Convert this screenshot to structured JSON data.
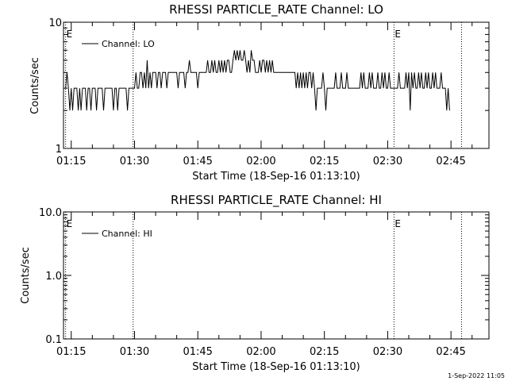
{
  "footer": {
    "timestamp": "1-Sep-2022 11:05"
  },
  "chart_data": [
    {
      "type": "line",
      "title": "RHESSI PARTICLE_RATE Channel: LO",
      "xlabel": "Start Time (18-Sep-16 01:13:10)",
      "ylabel": "Counts/sec",
      "yscale": "log",
      "ylim": [
        1,
        10
      ],
      "ytick_labels": [
        "1",
        "10"
      ],
      "xlim": [
        "01:13:10",
        "02:54:00"
      ],
      "xtick_labels": [
        "01:15",
        "01:30",
        "01:45",
        "02:00",
        "02:15",
        "02:30",
        "02:45"
      ],
      "legend": {
        "position": "top-left",
        "entries": [
          "Channel: LO"
        ]
      },
      "markers": [
        {
          "time": "01:13:40",
          "label": "E"
        },
        {
          "time": "01:29:40",
          "label": ""
        },
        {
          "time": "02:31:30",
          "label": "E"
        },
        {
          "time": "02:47:30",
          "label": ""
        }
      ],
      "series": [
        {
          "name": "Channel: LO",
          "x_start": "01:13:40",
          "x_step_seconds": 20,
          "values": [
            3,
            4,
            3,
            2,
            3,
            2,
            3,
            3,
            3,
            2,
            3,
            2,
            3,
            3,
            3,
            2,
            3,
            3,
            2,
            3,
            3,
            3,
            2,
            3,
            3,
            3,
            3,
            2,
            3,
            3,
            3,
            3,
            3,
            3,
            2,
            3,
            3,
            2,
            3,
            3,
            3,
            3,
            3,
            3,
            2,
            3,
            3,
            3,
            3,
            3,
            4,
            3,
            3,
            4,
            4,
            3,
            4,
            3,
            5,
            3,
            4,
            3,
            4,
            4,
            4,
            3,
            4,
            4,
            3,
            4,
            4,
            4,
            3,
            4,
            4,
            4,
            4,
            4,
            4,
            4,
            3,
            4,
            4,
            4,
            4,
            3,
            4,
            4,
            5,
            4,
            4,
            4,
            4,
            4,
            3,
            4,
            4,
            4,
            4,
            4,
            4,
            5,
            4,
            4,
            5,
            4,
            5,
            4,
            4,
            5,
            4,
            5,
            4,
            5,
            4,
            5,
            5,
            4,
            4,
            5,
            6,
            5,
            6,
            5,
            6,
            5,
            5,
            6,
            5,
            4,
            5,
            4,
            6,
            5,
            5,
            4,
            4,
            4,
            5,
            4,
            5,
            5,
            4,
            5,
            4,
            5,
            4,
            5,
            4,
            4,
            4,
            4,
            4,
            4,
            4,
            4,
            4,
            4,
            4,
            4,
            4,
            4,
            4,
            4,
            3,
            4,
            3,
            4,
            3,
            4,
            3,
            4,
            3,
            4,
            4,
            3,
            4,
            3,
            2,
            3,
            3,
            3,
            3,
            4,
            3,
            2,
            3,
            3,
            3,
            3,
            3,
            3,
            4,
            3,
            3,
            3,
            4,
            3,
            3,
            3,
            4,
            3,
            3,
            3,
            3,
            3,
            3,
            3,
            3,
            3,
            4,
            3,
            4,
            3,
            3,
            3,
            4,
            3,
            4,
            3,
            3,
            3,
            4,
            3,
            3,
            4,
            3,
            4,
            3,
            3,
            4,
            3,
            3,
            3,
            3,
            3,
            3,
            4,
            3,
            3,
            3,
            3,
            4,
            3,
            4,
            2,
            4,
            3,
            4,
            3,
            3,
            4,
            3,
            4,
            3,
            3,
            4,
            3,
            4,
            3,
            3,
            4,
            3,
            4,
            3,
            3,
            3,
            4,
            3,
            3,
            3,
            2,
            3,
            2
          ]
        }
      ]
    },
    {
      "type": "line",
      "title": "RHESSI PARTICLE_RATE Channel: HI",
      "xlabel": "Start Time (18-Sep-16 01:13:10)",
      "ylabel": "Counts/sec",
      "yscale": "log",
      "ylim": [
        0.1,
        10
      ],
      "ytick_labels": [
        "0.1",
        "1.0",
        "10.0"
      ],
      "xlim": [
        "01:13:10",
        "02:54:00"
      ],
      "xtick_labels": [
        "01:15",
        "01:30",
        "01:45",
        "02:00",
        "02:15",
        "02:30",
        "02:45"
      ],
      "legend": {
        "position": "top-left",
        "entries": [
          "Channel: HI"
        ]
      },
      "markers": [
        {
          "time": "01:13:40",
          "label": "E"
        },
        {
          "time": "01:29:40",
          "label": ""
        },
        {
          "time": "02:31:30",
          "label": "E"
        },
        {
          "time": "02:47:30",
          "label": ""
        }
      ],
      "series": [
        {
          "name": "Channel: HI",
          "values": []
        }
      ]
    }
  ]
}
